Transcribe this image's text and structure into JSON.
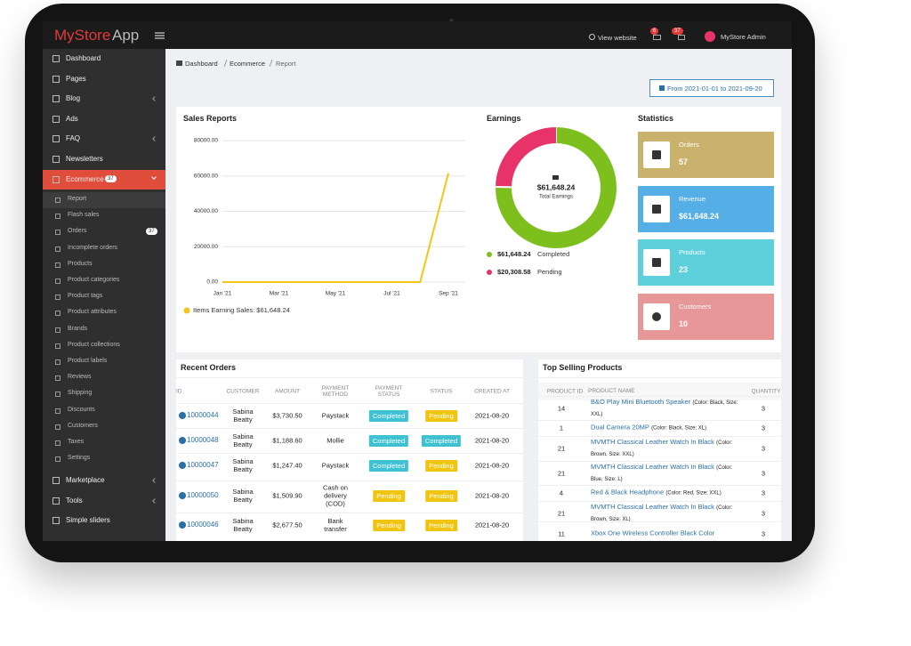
{
  "topbar": {
    "logo_a": "MyStore",
    "logo_b": "App",
    "view_website": "View website",
    "badge_messages": "6",
    "badge_cart": "37",
    "user": "MyStore Admin"
  },
  "sidebar": {
    "items": [
      {
        "label": "Dashboard"
      },
      {
        "label": "Pages"
      },
      {
        "label": "Blog"
      },
      {
        "label": "Ads"
      },
      {
        "label": "FAQ"
      },
      {
        "label": "Newsletters"
      },
      {
        "label": "Ecommerce",
        "badge": "37"
      }
    ],
    "submenu": [
      {
        "label": "Report"
      },
      {
        "label": "Flash sales"
      },
      {
        "label": "Orders",
        "badge": "37"
      },
      {
        "label": "Incomplete orders"
      },
      {
        "label": "Products"
      },
      {
        "label": "Product categories"
      },
      {
        "label": "Product tags"
      },
      {
        "label": "Product attributes"
      },
      {
        "label": "Brands"
      },
      {
        "label": "Product collections"
      },
      {
        "label": "Product labels"
      },
      {
        "label": "Reviews"
      },
      {
        "label": "Shipping"
      },
      {
        "label": "Discounts"
      },
      {
        "label": "Customers"
      },
      {
        "label": "Taxes"
      },
      {
        "label": "Settings"
      }
    ],
    "items_after": [
      {
        "label": "Marketplace"
      },
      {
        "label": "Tools"
      },
      {
        "label": "Simple sliders"
      }
    ]
  },
  "breadcrumb": [
    "Dashboard",
    "Ecommerce",
    "Report"
  ],
  "date_range": "From 2021-01-01 to 2021-09-20",
  "sales_report": {
    "title": "Sales Reports",
    "legend": "Items Earning Sales: $61,648.24",
    "chart": {
      "type": "line",
      "categories": [
        "Jan '21",
        null,
        "Mar '21",
        null,
        "May '21",
        null,
        "Jul '21",
        null,
        "Sep '21"
      ],
      "series": [
        {
          "color": "#f5c518",
          "values": [
            0,
            0,
            0,
            0,
            0,
            0,
            0,
            0,
            61648.24
          ]
        }
      ],
      "ylim": [
        0,
        80000
      ],
      "yticks": [
        {
          "value": 0,
          "label": "0.00"
        },
        {
          "value": 20000,
          "label": "20000.00"
        },
        {
          "value": 40000,
          "label": "40000.00"
        },
        {
          "value": 60000,
          "label": "60000.00"
        },
        {
          "value": 80000,
          "label": "80000.00"
        }
      ],
      "grid": true
    }
  },
  "earnings": {
    "title": "Earnings",
    "total": "$61,648.24",
    "total_label": "Total Earnings",
    "chart": {
      "type": "donut",
      "categories": [
        "Completed",
        "Pending"
      ],
      "values": [
        61648.24,
        20308.58
      ],
      "value_labels": [
        "$61,648.24",
        "$20,308.58"
      ],
      "colors": [
        "#7dc01e",
        "#e8336a"
      ]
    }
  },
  "statistics": {
    "title": "Statistics",
    "cards": [
      {
        "label": "Orders",
        "value": 57
      },
      {
        "label": "Revenue",
        "value": "$61,648.24"
      },
      {
        "label": "Products",
        "value": 23
      },
      {
        "label": "Customers",
        "value": 10
      }
    ]
  },
  "recent_orders": {
    "title": "Recent Orders",
    "headers": [
      "ID",
      "CUSTOMER",
      "AMOUNT",
      "PAYMENT METHOD",
      "PAYMENT STATUS",
      "STATUS",
      "CREATED AT"
    ],
    "rows": [
      [
        "10000044",
        "Sabina Beatty",
        "$3,730.50",
        "Paystack",
        "Completed",
        "Pending",
        "2021-08-20"
      ],
      [
        "10000048",
        "Sabina Beatty",
        "$1,188.60",
        "Mollie",
        "Completed",
        "Completed",
        "2021-08-20"
      ],
      [
        "10000047",
        "Sabina Beatty",
        "$1,247.40",
        "Paystack",
        "Completed",
        "Pending",
        "2021-08-20"
      ],
      [
        "10000050",
        "Sabina Beatty",
        "$1,509.90",
        "Cash on delivery (COD)",
        "Pending",
        "Pending",
        "2021-08-20"
      ],
      [
        "10000046",
        "Sabina Beatty",
        "$2,677.50",
        "Bank transfer",
        "Pending",
        "Pending",
        "2021-08-20"
      ]
    ]
  },
  "top_selling": {
    "title": "Top Selling Products",
    "headers": [
      "PRODUCT ID",
      "PRODUCT NAME",
      "QUANTITY"
    ],
    "rows": [
      {
        "id": "14",
        "name": "B&O Play Mini Bluetooth Speaker",
        "attrs": "(Color: Black, Size: XXL)",
        "qty": "3"
      },
      {
        "id": "1",
        "name": "Dual Camera 20MP",
        "attrs": "(Color: Black, Size: XL)",
        "qty": "3"
      },
      {
        "id": "21",
        "name": "MVMTH Classical Leather Watch In Black",
        "attrs": "(Color: Brown, Size: XXL)",
        "qty": "3"
      },
      {
        "id": "21",
        "name": "MVMTH Classical Leather Watch In Black",
        "attrs": "(Color: Blue, Size: L)",
        "qty": "3"
      },
      {
        "id": "4",
        "name": "Red & Black Headphone",
        "attrs": "(Color: Red, Size: XXL)",
        "qty": "3"
      },
      {
        "id": "21",
        "name": "MVMTH Classical Leather Watch In Black",
        "attrs": "(Color: Brown, Size: XL)",
        "qty": "3"
      },
      {
        "id": "11",
        "name": "Xbox One Wireless Controller Black Color",
        "attrs": "",
        "qty": "3"
      }
    ]
  }
}
